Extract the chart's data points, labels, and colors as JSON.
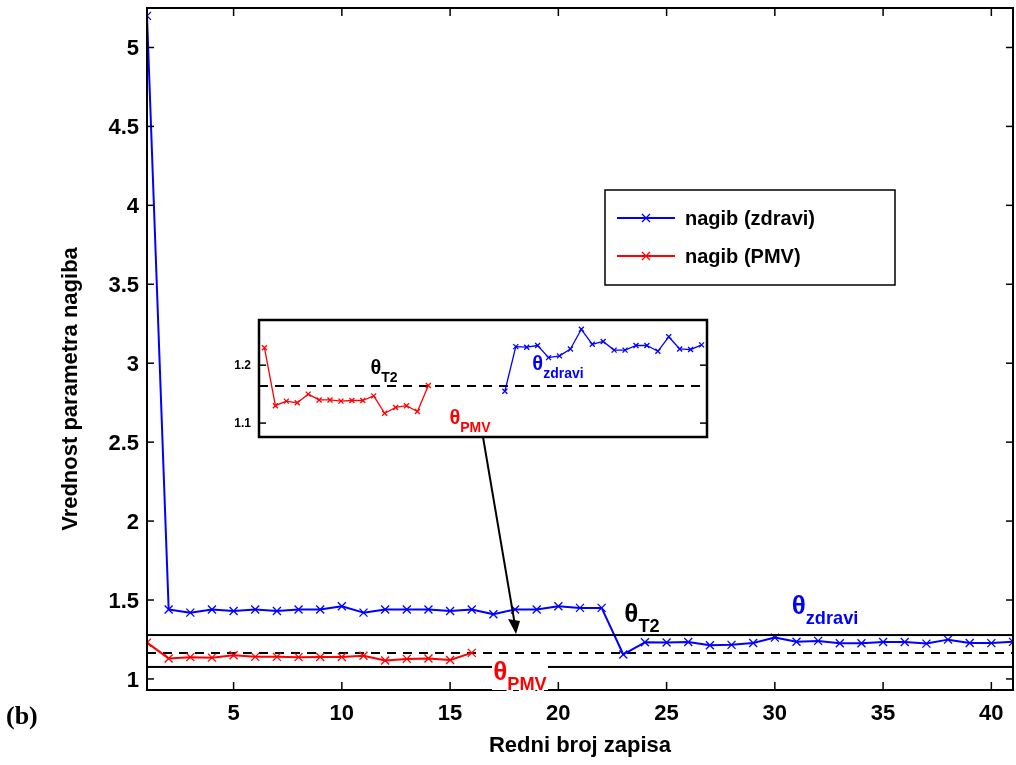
{
  "chart_data": [
    {
      "type": "line",
      "xlabel": "Redni broj zapisa",
      "ylabel": "Vrednost parametra nagiba",
      "xlim": [
        1,
        41
      ],
      "ylim": [
        0.93,
        5.25
      ],
      "xticks": [
        5,
        10,
        15,
        20,
        25,
        30,
        35,
        40
      ],
      "yticks": [
        1,
        1.5,
        2,
        2.5,
        3,
        3.5,
        4,
        4.5,
        5
      ],
      "legend": "top right",
      "marker": "cross",
      "line_style": "solid",
      "grid": false,
      "series": [
        {
          "name": "nagib (zdravi)",
          "color": "#0000ff",
          "x": [
            1,
            2,
            3,
            4,
            5,
            6,
            7,
            8,
            9,
            10,
            11,
            12,
            13,
            14,
            15,
            16,
            17,
            18,
            19,
            20,
            21,
            22,
            23,
            24,
            25,
            26,
            27,
            28,
            29,
            30,
            31,
            32,
            33,
            34,
            35,
            36,
            37,
            38,
            39,
            40,
            41
          ],
          "values": [
            5.2,
            1.44,
            1.42,
            1.44,
            1.43,
            1.44,
            1.43,
            1.44,
            1.44,
            1.46,
            1.42,
            1.44,
            1.44,
            1.44,
            1.43,
            1.44,
            1.41,
            1.44,
            1.44,
            1.46,
            1.45,
            1.45,
            1.155,
            1.232,
            1.231,
            1.234,
            1.213,
            1.216,
            1.228,
            1.262,
            1.236,
            1.241,
            1.226,
            1.226,
            1.234,
            1.234,
            1.224,
            1.249,
            1.228,
            1.227,
            1.235
          ]
        },
        {
          "name": "nagib (PMV)",
          "color": "#ff0000",
          "x": [
            1,
            2,
            3,
            4,
            5,
            6,
            7,
            8,
            9,
            10,
            11,
            12,
            13,
            14,
            15,
            16
          ],
          "values": [
            1.23,
            1.13,
            1.138,
            1.135,
            1.15,
            1.14,
            1.14,
            1.138,
            1.139,
            1.139,
            1.147,
            1.117,
            1.127,
            1.13,
            1.12,
            1.165
          ]
        }
      ],
      "ref_lines": [
        {
          "axis": "y",
          "value": 1.164,
          "color": "#000000",
          "line_style": "dashed"
        }
      ],
      "annotations": [
        "θ$_{T2}$",
        "θ$_{zdravi}$",
        "θ$_{PMV}$",
        "(b)"
      ]
    },
    {
      "type": "line",
      "categories": [
        null,
        null,
        null,
        null,
        null,
        null,
        null,
        null,
        null,
        null,
        null,
        null,
        null,
        null,
        null,
        null,
        null,
        null,
        null,
        null,
        null,
        null,
        null,
        null,
        null,
        null,
        null,
        null,
        null,
        null,
        null,
        null,
        null,
        null,
        null,
        null,
        null,
        null,
        null,
        null,
        null
      ],
      "ylim": [
        1.076,
        1.278
      ],
      "yticks": [
        1.1,
        1.2
      ],
      "tick_labels": "y",
      "marker": "cross",
      "line_style": "solid",
      "legend": false,
      "series": [
        {
          "color": "#0000ff",
          "values": [
            null,
            null,
            null,
            null,
            null,
            null,
            null,
            null,
            null,
            null,
            null,
            null,
            null,
            null,
            null,
            null,
            null,
            null,
            null,
            null,
            null,
            null,
            1.155,
            1.232,
            1.231,
            1.234,
            1.213,
            1.216,
            1.228,
            1.262,
            1.236,
            1.241,
            1.226,
            1.226,
            1.234,
            1.234,
            1.224,
            1.249,
            1.228,
            1.227,
            1.235
          ]
        },
        {
          "color": "#ff0000",
          "values": [
            1.23,
            1.13,
            1.138,
            1.135,
            1.15,
            1.14,
            1.14,
            1.138,
            1.139,
            1.139,
            1.147,
            1.117,
            1.127,
            1.13,
            1.12,
            1.165,
            null,
            null,
            null,
            null,
            null,
            null,
            null,
            null,
            null,
            null,
            null,
            null,
            null,
            null,
            null,
            null,
            null,
            null,
            null,
            null,
            null,
            null,
            null,
            null,
            null
          ]
        }
      ],
      "ref_lines": [
        {
          "axis": "y",
          "value": 1.164,
          "color": "#000000",
          "line_style": "dashed"
        }
      ],
      "annotations": [
        "θ$_{T2}$",
        "θ$_{zdravi}$",
        "θ$_{PMV}$"
      ]
    }
  ]
}
